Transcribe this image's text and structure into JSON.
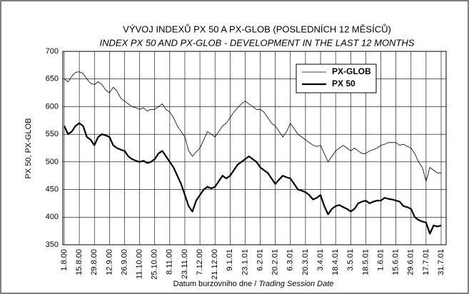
{
  "chart_data": {
    "type": "line",
    "title": "VÝVOJ INDEXŮ PX 50  A PX-GLOB (POSLEDNÍCH 12 MĚSÍCŮ)",
    "subtitle": "INDEX PX 50 AND PX-GLOB - DEVELOPMENT IN THE LAST 12 MONTHS",
    "ylabel": "PX 50, PX-GLOB",
    "xlabel": "Datum burzovniho dne / ",
    "xlabel_italic": "Trading Session Date",
    "categories": [
      "1.8.00",
      null,
      null,
      null,
      "15.8.00",
      null,
      null,
      null,
      "29.8.00",
      null,
      null,
      null,
      "12.9.00",
      null,
      null,
      null,
      "26.9.00",
      null,
      null,
      null,
      "11.10.00",
      null,
      null,
      null,
      "25.10.00",
      null,
      null,
      null,
      "8.11.00",
      null,
      null,
      null,
      "23.11.00",
      null,
      null,
      null,
      "7.12.00",
      null,
      null,
      null,
      "21.12.00",
      null,
      null,
      null,
      "9.1.01",
      null,
      null,
      null,
      "23.1.01",
      null,
      null,
      null,
      "6.2.01",
      null,
      null,
      null,
      "20.2.01",
      null,
      null,
      null,
      "6.3.01",
      null,
      null,
      null,
      "20.3.01",
      null,
      null,
      null,
      "3.4.01",
      null,
      null,
      null,
      "18.4.01",
      null,
      null,
      null,
      "3.5.01",
      null,
      null,
      null,
      "18.5.01",
      null,
      null,
      null,
      "1.6.01",
      null,
      null,
      null,
      "15.6.01",
      null,
      null,
      null,
      "29.6.01",
      null,
      null,
      null,
      "17.7.01",
      null,
      null,
      null,
      "31.7.01"
    ],
    "series": [
      {
        "name": "PX-GLOB",
        "color": "#000000",
        "width": 0.8,
        "values": [
          650,
          645,
          655,
          662,
          663,
          660,
          650,
          642,
          640,
          645,
          640,
          630,
          625,
          635,
          628,
          615,
          610,
          605,
          600,
          598,
          595,
          598,
          592,
          595,
          595,
          600,
          605,
          595,
          590,
          580,
          565,
          555,
          545,
          520,
          510,
          518,
          525,
          540,
          555,
          550,
          545,
          555,
          565,
          570,
          580,
          590,
          598,
          605,
          610,
          605,
          600,
          595,
          595,
          590,
          580,
          570,
          565,
          555,
          545,
          555,
          570,
          560,
          550,
          545,
          540,
          535,
          530,
          528,
          530,
          515,
          500,
          510,
          520,
          525,
          530,
          525,
          520,
          525,
          520,
          515,
          515,
          520,
          522,
          525,
          530,
          532,
          535,
          535,
          535,
          530,
          532,
          528,
          525,
          515,
          500,
          490,
          465,
          490,
          485,
          480,
          480
        ]
      },
      {
        "name": "PX 50",
        "color": "#000000",
        "width": 2.2,
        "values": [
          565,
          550,
          555,
          565,
          570,
          565,
          545,
          540,
          530,
          545,
          550,
          548,
          545,
          530,
          525,
          522,
          520,
          510,
          505,
          502,
          500,
          502,
          498,
          500,
          505,
          515,
          520,
          510,
          500,
          490,
          475,
          460,
          440,
          420,
          410,
          430,
          440,
          450,
          455,
          452,
          455,
          465,
          475,
          470,
          475,
          485,
          495,
          500,
          505,
          510,
          505,
          500,
          490,
          485,
          480,
          470,
          460,
          468,
          475,
          472,
          470,
          460,
          450,
          448,
          445,
          440,
          432,
          435,
          440,
          420,
          405,
          415,
          420,
          422,
          418,
          415,
          410,
          415,
          425,
          428,
          430,
          425,
          428,
          430,
          430,
          435,
          433,
          432,
          430,
          428,
          420,
          418,
          415,
          400,
          395,
          392,
          390,
          370,
          385,
          383,
          385
        ]
      }
    ],
    "ylim": [
      350,
      700
    ],
    "yticks": [
      350,
      400,
      450,
      500,
      550,
      600,
      650,
      700
    ],
    "grid": true,
    "legend": "upper right"
  }
}
